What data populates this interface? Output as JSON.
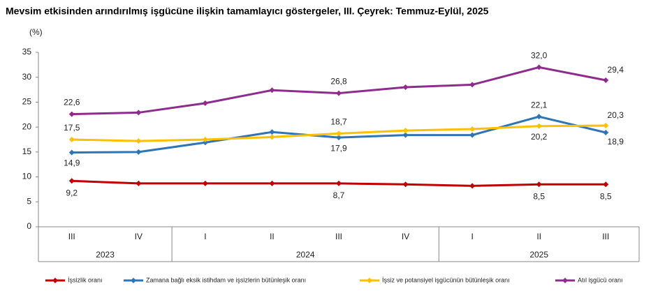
{
  "chart_data": {
    "type": "line",
    "title": "Mevsim etkisinden arındırılmış işgücüne ilişkin tamamlayıcı göstergeler, III. Çeyrek: Temmuz-Eylül, 2025",
    "y_label": "(%)",
    "categories": [
      "III",
      "IV",
      "I",
      "II",
      "III",
      "IV",
      "I",
      "II",
      "III"
    ],
    "years": [
      "2023",
      "2023",
      "2024",
      "2024",
      "2024",
      "2024",
      "2025",
      "2025",
      "2025"
    ],
    "ylim": [
      0,
      35
    ],
    "yticks": [
      0,
      5,
      10,
      15,
      20,
      25,
      30,
      35
    ],
    "grid": false,
    "legend": "bottom",
    "series": [
      {
        "name": "İşsizlik oranı",
        "color": "#c00000",
        "values": [
          9.2,
          8.7,
          8.7,
          8.7,
          8.7,
          8.5,
          8.2,
          8.5,
          8.5
        ],
        "value_labels": [
          "9,2",
          null,
          null,
          null,
          "8,7",
          null,
          null,
          "8,5",
          "8,5"
        ]
      },
      {
        "name": "Zamana bağlı eksik istihdam ve işsizlerin bütünleşik oranı",
        "color": "#2e75b6",
        "values": [
          14.9,
          15.0,
          16.9,
          19.0,
          17.9,
          18.4,
          18.4,
          22.1,
          18.9
        ],
        "value_labels": [
          "14,9",
          null,
          null,
          null,
          "17,9",
          null,
          null,
          "22,1",
          "18,9"
        ]
      },
      {
        "name": "İşsiz ve potansiyel işgücünün bütünleşik oranı",
        "color": "#ffc000",
        "values": [
          17.5,
          17.2,
          17.5,
          18.0,
          18.7,
          19.3,
          19.6,
          20.2,
          20.3
        ],
        "value_labels": [
          "17,5",
          null,
          null,
          null,
          "18,7",
          null,
          null,
          "20,2",
          "20,3"
        ]
      },
      {
        "name": "Atıl işgücü oranı",
        "color": "#8e2c8e",
        "values": [
          22.6,
          22.9,
          24.8,
          27.4,
          26.8,
          28.0,
          28.5,
          32.0,
          29.4
        ],
        "value_labels": [
          "22,6",
          null,
          null,
          null,
          "26,8",
          null,
          null,
          "32,0",
          "29,4"
        ]
      }
    ]
  }
}
